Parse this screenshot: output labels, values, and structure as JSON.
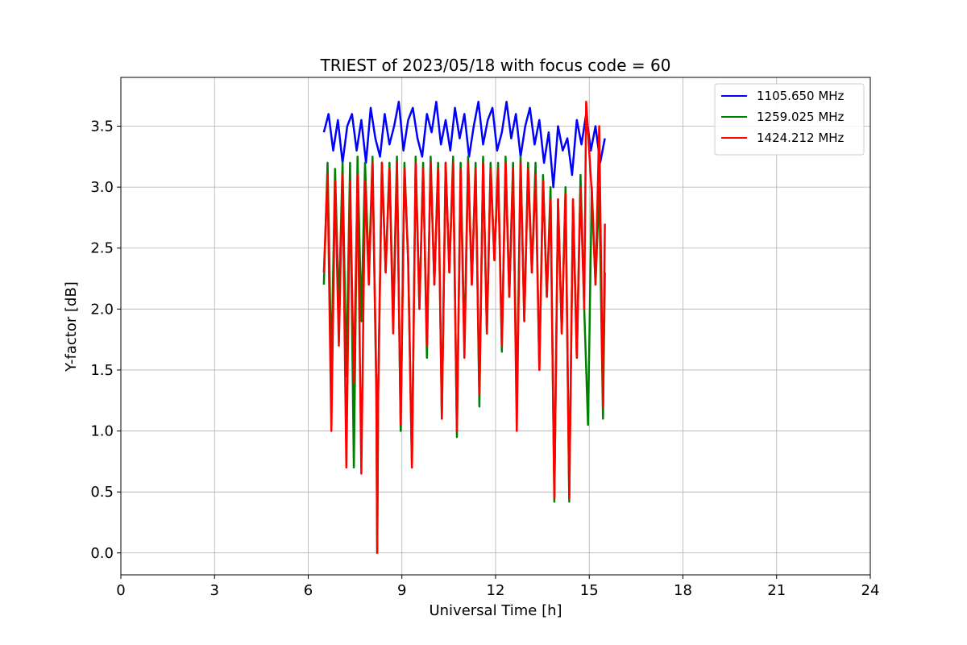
{
  "chart_data": {
    "type": "line",
    "title": "TRIEST of 2023/05/18 with focus code = 60",
    "xlabel": "Universal Time [h]",
    "ylabel": "Y-factor [dB]",
    "xlim": [
      0,
      24
    ],
    "ylim": [
      -0.18,
      3.9
    ],
    "xticks": [
      0,
      3,
      6,
      9,
      12,
      15,
      18,
      21,
      24
    ],
    "yticks": [
      0.0,
      0.5,
      1.0,
      1.5,
      2.0,
      2.5,
      3.0,
      3.5
    ],
    "xtick_labels": [
      "0",
      "3",
      "6",
      "9",
      "12",
      "15",
      "18",
      "21",
      "24"
    ],
    "ytick_labels": [
      "0.0",
      "0.5",
      "1.0",
      "1.5",
      "2.0",
      "2.5",
      "3.0",
      "3.5"
    ],
    "grid": true,
    "legend_position": "top-right",
    "series": [
      {
        "name": "1105.650 MHz",
        "color": "#0000ff",
        "x": [
          6.5,
          6.65,
          6.8,
          6.95,
          7.1,
          7.25,
          7.4,
          7.55,
          7.7,
          7.85,
          8.0,
          8.15,
          8.3,
          8.45,
          8.6,
          8.75,
          8.9,
          9.05,
          9.2,
          9.35,
          9.5,
          9.65,
          9.8,
          9.95,
          10.1,
          10.25,
          10.4,
          10.55,
          10.7,
          10.85,
          11.0,
          11.15,
          11.3,
          11.45,
          11.6,
          11.75,
          11.9,
          12.05,
          12.2,
          12.35,
          12.5,
          12.65,
          12.8,
          12.95,
          13.1,
          13.25,
          13.4,
          13.55,
          13.7,
          13.85,
          14.0,
          14.15,
          14.3,
          14.45,
          14.6,
          14.75,
          14.9,
          15.05,
          15.2,
          15.35,
          15.5
        ],
        "values": [
          3.45,
          3.6,
          3.3,
          3.55,
          3.2,
          3.5,
          3.6,
          3.3,
          3.55,
          3.2,
          3.65,
          3.4,
          3.25,
          3.6,
          3.35,
          3.5,
          3.7,
          3.3,
          3.55,
          3.65,
          3.4,
          3.25,
          3.6,
          3.45,
          3.7,
          3.35,
          3.55,
          3.3,
          3.65,
          3.4,
          3.6,
          3.25,
          3.5,
          3.7,
          3.35,
          3.55,
          3.65,
          3.3,
          3.45,
          3.7,
          3.4,
          3.6,
          3.25,
          3.5,
          3.65,
          3.35,
          3.55,
          3.2,
          3.45,
          3.0,
          3.5,
          3.3,
          3.4,
          3.1,
          3.55,
          3.35,
          3.6,
          3.3,
          3.5,
          3.2,
          3.4
        ]
      },
      {
        "name": "1259.025 MHz",
        "color": "#008000",
        "x": [
          6.5,
          6.62,
          6.74,
          6.86,
          6.98,
          7.1,
          7.22,
          7.34,
          7.46,
          7.58,
          7.7,
          7.82,
          7.94,
          8.06,
          8.18,
          8.21,
          8.24,
          8.36,
          8.48,
          8.6,
          8.72,
          8.84,
          8.96,
          9.08,
          9.2,
          9.32,
          9.44,
          9.56,
          9.68,
          9.8,
          9.92,
          10.04,
          10.16,
          10.28,
          10.4,
          10.52,
          10.64,
          10.76,
          10.88,
          11.0,
          11.12,
          11.24,
          11.36,
          11.48,
          11.6,
          11.72,
          11.84,
          11.96,
          12.08,
          12.2,
          12.32,
          12.44,
          12.56,
          12.68,
          12.8,
          12.92,
          13.04,
          13.16,
          13.28,
          13.4,
          13.52,
          13.64,
          13.76,
          13.88,
          14.0,
          14.12,
          14.24,
          14.36,
          14.48,
          14.6,
          14.72,
          14.84,
          14.96,
          15.08,
          15.2,
          15.32,
          15.44,
          15.5
        ],
        "values": [
          2.2,
          3.2,
          1.5,
          3.15,
          2.0,
          3.2,
          1.45,
          3.2,
          0.7,
          3.25,
          1.9,
          3.2,
          2.3,
          3.25,
          1.3,
          0.0,
          1.3,
          3.2,
          2.3,
          3.2,
          1.9,
          3.25,
          1.0,
          3.2,
          2.4,
          0.7,
          3.25,
          2.0,
          3.2,
          1.6,
          3.25,
          2.2,
          3.2,
          1.1,
          3.2,
          2.3,
          3.25,
          0.95,
          3.2,
          1.7,
          3.25,
          2.2,
          3.2,
          1.2,
          3.25,
          1.8,
          3.2,
          2.4,
          3.2,
          1.65,
          3.25,
          2.1,
          3.2,
          1.2,
          3.25,
          1.9,
          3.2,
          2.3,
          3.2,
          1.5,
          3.1,
          2.1,
          3.0,
          0.42,
          2.9,
          1.8,
          3.0,
          0.42,
          2.9,
          1.6,
          3.1,
          2.0,
          1.05,
          3.0,
          2.2,
          3.0,
          1.1,
          2.3
        ]
      },
      {
        "name": "1424.212 MHz",
        "color": "#ff0000",
        "x": [
          6.5,
          6.62,
          6.74,
          6.86,
          6.98,
          7.1,
          7.22,
          7.34,
          7.46,
          7.58,
          7.7,
          7.82,
          7.94,
          8.06,
          8.18,
          8.21,
          8.24,
          8.36,
          8.48,
          8.6,
          8.72,
          8.84,
          8.96,
          9.08,
          9.2,
          9.32,
          9.44,
          9.56,
          9.68,
          9.8,
          9.92,
          10.04,
          10.16,
          10.28,
          10.4,
          10.52,
          10.64,
          10.76,
          10.88,
          11.0,
          11.12,
          11.24,
          11.36,
          11.48,
          11.6,
          11.72,
          11.84,
          11.96,
          12.08,
          12.2,
          12.32,
          12.44,
          12.56,
          12.68,
          12.8,
          12.92,
          13.04,
          13.16,
          13.28,
          13.4,
          13.52,
          13.64,
          13.76,
          13.88,
          14.0,
          14.12,
          14.24,
          14.36,
          14.48,
          14.6,
          14.72,
          14.84,
          14.9,
          15.08,
          15.2,
          15.32,
          15.44,
          15.5
        ],
        "values": [
          2.3,
          3.1,
          1.0,
          3.05,
          1.7,
          3.1,
          0.7,
          3.05,
          1.4,
          3.1,
          0.65,
          3.05,
          2.2,
          3.2,
          1.4,
          0.0,
          1.3,
          3.2,
          2.3,
          3.15,
          1.8,
          3.2,
          1.05,
          3.15,
          2.4,
          0.7,
          3.2,
          2.0,
          3.15,
          1.7,
          3.2,
          2.2,
          3.15,
          1.1,
          3.2,
          2.3,
          3.2,
          1.0,
          3.15,
          1.6,
          3.2,
          2.2,
          3.15,
          1.3,
          3.2,
          1.8,
          3.15,
          2.4,
          3.15,
          1.7,
          3.2,
          2.1,
          3.15,
          1.0,
          3.2,
          1.9,
          3.15,
          2.3,
          3.1,
          1.5,
          3.05,
          2.1,
          2.9,
          0.45,
          2.9,
          1.8,
          2.95,
          0.45,
          2.9,
          1.6,
          3.0,
          2.0,
          3.7,
          2.95,
          2.2,
          3.5,
          1.2,
          2.7
        ]
      }
    ]
  }
}
